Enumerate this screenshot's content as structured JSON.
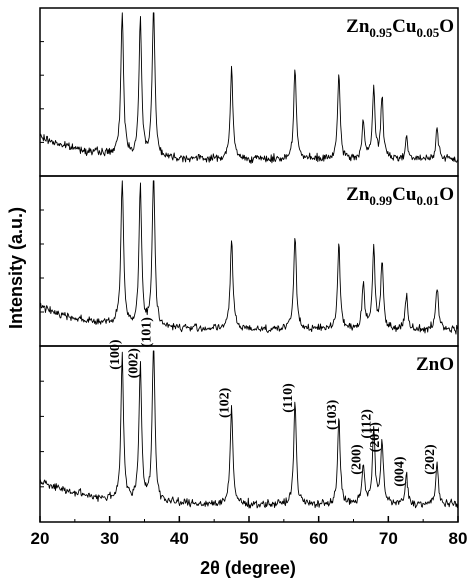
{
  "chart_data": {
    "type": "line",
    "x_axis": {
      "label": "2θ (degree)",
      "range": [
        20,
        80
      ],
      "ticks": [
        "20",
        "30",
        "40",
        "50",
        "60",
        "70",
        "80"
      ]
    },
    "y_axis": {
      "label": "Intensity (a.u.)"
    },
    "grid": false,
    "peak_positions_2theta": [
      31.8,
      34.4,
      36.3,
      47.5,
      56.6,
      62.9,
      66.4,
      67.9,
      69.1,
      72.6,
      77.0
    ],
    "panels": [
      {
        "name_parts": [
          {
            "text": "Zn",
            "sub": false
          },
          {
            "text": "0.95",
            "sub": true
          },
          {
            "text": "Cu",
            "sub": false
          },
          {
            "text": "0.05",
            "sub": true
          },
          {
            "text": "O",
            "sub": false
          }
        ],
        "peak_heights": [
          0.9,
          0.84,
          0.97,
          0.55,
          0.57,
          0.5,
          0.23,
          0.43,
          0.37,
          0.14,
          0.2
        ],
        "baseline": 0.1
      },
      {
        "name_parts": [
          {
            "text": "Zn",
            "sub": false
          },
          {
            "text": "0.99",
            "sub": true
          },
          {
            "text": "Cu",
            "sub": false
          },
          {
            "text": "0.01",
            "sub": true
          },
          {
            "text": "O",
            "sub": false
          }
        ],
        "peak_heights": [
          0.9,
          0.85,
          0.96,
          0.55,
          0.57,
          0.52,
          0.27,
          0.49,
          0.4,
          0.2,
          0.26
        ],
        "baseline": 0.1
      },
      {
        "name_parts": [
          {
            "text": "ZnO",
            "sub": false
          }
        ],
        "peak_heights": [
          0.85,
          0.8,
          0.98,
          0.57,
          0.6,
          0.5,
          0.24,
          0.45,
          0.37,
          0.17,
          0.24
        ],
        "baseline": 0.1,
        "peak_labels": [
          "(100)",
          "(002)",
          "(101)",
          "(102)",
          "(110)",
          "(103)",
          "(200)",
          "(112)",
          "(201)",
          "(004)",
          "(202)"
        ]
      }
    ]
  }
}
